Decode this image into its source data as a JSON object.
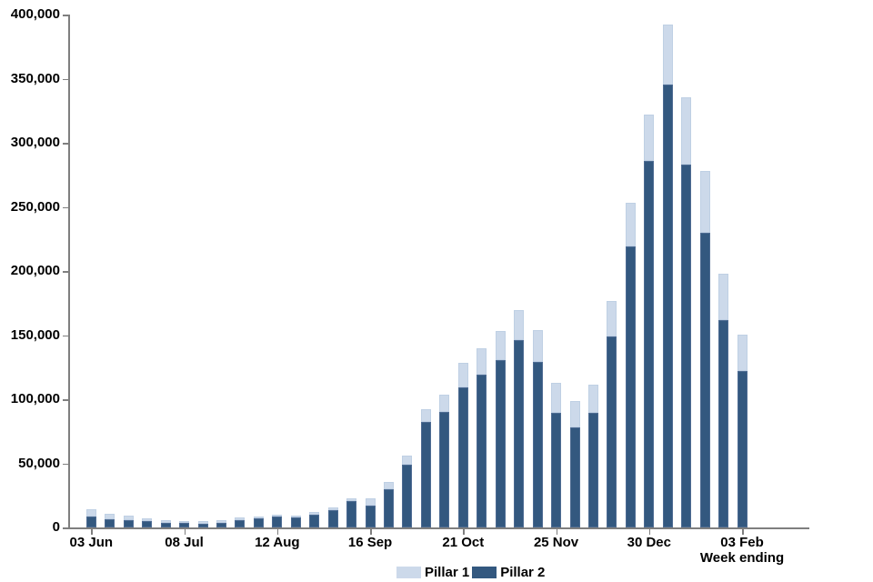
{
  "chart_data": {
    "type": "bar",
    "stacked": true,
    "title": "",
    "xlabel": "Week ending",
    "ylabel": "",
    "ylim": [
      0,
      400000
    ],
    "ytick_step": 50000,
    "grid": false,
    "legend_position": "bottom-center",
    "axis_color": "#7f7f7f",
    "text_color": "#000000",
    "categories": [
      "03 Jun",
      "10 Jun",
      "17 Jun",
      "24 Jun",
      "01 Jul",
      "08 Jul",
      "15 Jul",
      "22 Jul",
      "29 Jul",
      "05 Aug",
      "12 Aug",
      "19 Aug",
      "26 Aug",
      "02 Sep",
      "09 Sep",
      "16 Sep",
      "23 Sep",
      "30 Sep",
      "07 Oct",
      "14 Oct",
      "21 Oct",
      "28 Oct",
      "04 Nov",
      "11 Nov",
      "18 Nov",
      "25 Nov",
      "02 Dec",
      "09 Dec",
      "16 Dec",
      "23 Dec",
      "30 Dec",
      "06 Jan",
      "13 Jan",
      "20 Jan",
      "27 Jan",
      "03 Feb"
    ],
    "x_tick_indices": [
      0,
      5,
      10,
      15,
      20,
      25,
      30,
      35
    ],
    "x_tick_labels": [
      "03 Jun",
      "08 Jul",
      "12 Aug",
      "16 Sep",
      "21 Oct",
      "25 Nov",
      "30 Dec",
      "03 Feb"
    ],
    "series": [
      {
        "name": "Pillar 1",
        "color": "#ccd9ea",
        "values": [
          5500,
          4300,
          3500,
          2300,
          1900,
          1900,
          1900,
          2100,
          1900,
          1400,
          1300,
          1400,
          1600,
          2100,
          2300,
          5200,
          5500,
          7100,
          9900,
          13400,
          18900,
          20800,
          22200,
          23200,
          25300,
          23400,
          20400,
          21800,
          27900,
          34200,
          36200,
          46800,
          52700,
          48400,
          35900,
          27900
        ]
      },
      {
        "name": "Pillar 2",
        "color": "#33587f",
        "values": [
          8500,
          6600,
          5700,
          5000,
          3800,
          3300,
          2900,
          3400,
          5900,
          6900,
          8800,
          7800,
          10200,
          13700,
          20600,
          17300,
          30000,
          48900,
          82000,
          90300,
          109400,
          119100,
          130700,
          146300,
          128800,
          89300,
          78000,
          89300,
          148900,
          219100,
          285800,
          345500,
          282900,
          229700,
          161900,
          122200
        ]
      }
    ]
  }
}
